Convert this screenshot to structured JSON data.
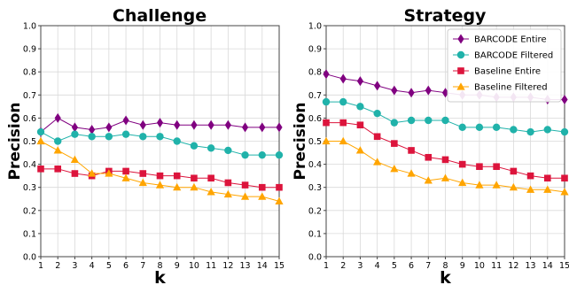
{
  "chart_data": [
    {
      "type": "line",
      "title": "Challenge",
      "xlabel": "k",
      "ylabel": "Precision",
      "x": [
        1,
        2,
        3,
        4,
        5,
        6,
        7,
        8,
        9,
        10,
        11,
        12,
        13,
        14,
        15
      ],
      "xlim": [
        1,
        15
      ],
      "ylim": [
        0.0,
        1.0
      ],
      "xticks": [
        "1",
        "2",
        "3",
        "4",
        "5",
        "6",
        "7",
        "8",
        "9",
        "10",
        "11",
        "12",
        "13",
        "14",
        "15"
      ],
      "yticks": [
        "0.0",
        "0.1",
        "0.2",
        "0.3",
        "0.4",
        "0.5",
        "0.6",
        "0.7",
        "0.8",
        "0.9",
        "1.0"
      ],
      "grid": true,
      "legend": null,
      "series": [
        {
          "name": "BARCODE Entire",
          "color": "#800080",
          "marker": "diamond",
          "values": [
            0.54,
            0.6,
            0.56,
            0.55,
            0.56,
            0.59,
            0.57,
            0.58,
            0.57,
            0.57,
            0.57,
            0.57,
            0.56,
            0.56,
            0.56
          ]
        },
        {
          "name": "BARCODE Filtered",
          "color": "#20B2AA",
          "marker": "circle",
          "values": [
            0.54,
            0.5,
            0.53,
            0.52,
            0.52,
            0.53,
            0.52,
            0.52,
            0.5,
            0.48,
            0.47,
            0.46,
            0.44,
            0.44,
            0.44
          ]
        },
        {
          "name": "Baseline Entire",
          "color": "#DC143C",
          "marker": "square",
          "values": [
            0.38,
            0.38,
            0.36,
            0.35,
            0.37,
            0.37,
            0.36,
            0.35,
            0.35,
            0.34,
            0.34,
            0.32,
            0.31,
            0.3,
            0.3
          ]
        },
        {
          "name": "Baseline Filtered",
          "color": "#FFA500",
          "marker": "triangle",
          "values": [
            0.5,
            0.46,
            0.42,
            0.36,
            0.36,
            0.34,
            0.32,
            0.31,
            0.3,
            0.3,
            0.28,
            0.27,
            0.26,
            0.26,
            0.24
          ]
        }
      ]
    },
    {
      "type": "line",
      "title": "Strategy",
      "xlabel": "k",
      "ylabel": "Precision",
      "x": [
        1,
        2,
        3,
        4,
        5,
        6,
        7,
        8,
        9,
        10,
        11,
        12,
        13,
        14,
        15
      ],
      "xlim": [
        1,
        15
      ],
      "ylim": [
        0.0,
        1.0
      ],
      "xticks": [
        "1",
        "2",
        "3",
        "4",
        "5",
        "6",
        "7",
        "8",
        "9",
        "10",
        "11",
        "12",
        "13",
        "14",
        "15"
      ],
      "yticks": [
        "0.0",
        "0.1",
        "0.2",
        "0.3",
        "0.4",
        "0.5",
        "0.6",
        "0.7",
        "0.8",
        "0.9",
        "1.0"
      ],
      "grid": true,
      "legend": "top-right",
      "series": [
        {
          "name": "BARCODE Entire",
          "color": "#800080",
          "marker": "diamond",
          "values": [
            0.79,
            0.77,
            0.76,
            0.74,
            0.72,
            0.71,
            0.72,
            0.71,
            0.7,
            0.7,
            0.69,
            0.69,
            0.69,
            0.68,
            0.68
          ]
        },
        {
          "name": "BARCODE Filtered",
          "color": "#20B2AA",
          "marker": "circle",
          "values": [
            0.67,
            0.67,
            0.65,
            0.62,
            0.58,
            0.59,
            0.59,
            0.59,
            0.56,
            0.56,
            0.56,
            0.55,
            0.54,
            0.55,
            0.54
          ]
        },
        {
          "name": "Baseline Entire",
          "color": "#DC143C",
          "marker": "square",
          "values": [
            0.58,
            0.58,
            0.57,
            0.52,
            0.49,
            0.46,
            0.43,
            0.42,
            0.4,
            0.39,
            0.39,
            0.37,
            0.35,
            0.34,
            0.34
          ]
        },
        {
          "name": "Baseline Filtered",
          "color": "#FFA500",
          "marker": "triangle",
          "values": [
            0.5,
            0.5,
            0.46,
            0.41,
            0.38,
            0.36,
            0.33,
            0.34,
            0.32,
            0.31,
            0.31,
            0.3,
            0.29,
            0.29,
            0.28
          ]
        }
      ]
    }
  ]
}
